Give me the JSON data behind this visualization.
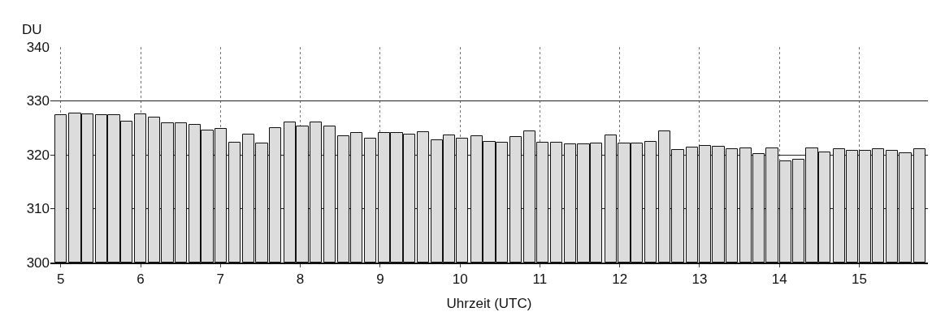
{
  "chart_data": {
    "type": "bar",
    "xlabel": "Uhrzeit (UTC)",
    "ylabel": "DU",
    "x": [
      5.0,
      5.18,
      5.34,
      5.51,
      5.67,
      5.83,
      6.0,
      6.17,
      6.34,
      6.51,
      6.68,
      6.84,
      7.01,
      7.18,
      7.35,
      7.52,
      7.69,
      7.87,
      8.03,
      8.2,
      8.37,
      8.54,
      8.71,
      8.88,
      9.05,
      9.21,
      9.37,
      9.54,
      9.71,
      9.87,
      10.03,
      10.21,
      10.37,
      10.53,
      10.7,
      10.87,
      11.04,
      11.21,
      11.38,
      11.55,
      11.71,
      11.89,
      12.06,
      12.22,
      12.39,
      12.56,
      12.73,
      12.91,
      13.07,
      13.24,
      13.41,
      13.58,
      13.74,
      13.91,
      14.08,
      14.24,
      14.41,
      14.57,
      14.75,
      14.91,
      15.08,
      15.24,
      15.41,
      15.58,
      15.76
    ],
    "values": [
      327.3,
      327.6,
      327.5,
      327.3,
      327.3,
      326.2,
      327.5,
      326.9,
      325.9,
      325.9,
      325.5,
      324.5,
      324.8,
      322.3,
      323.7,
      322.1,
      324.9,
      326.0,
      325.2,
      326.0,
      325.2,
      323.4,
      324.1,
      323.0,
      324.0,
      324.1,
      323.8,
      324.2,
      322.7,
      323.6,
      323.0,
      323.4,
      322.4,
      322.2,
      323.3,
      324.4,
      322.2,
      322.2,
      322.0,
      322.0,
      322.1,
      323.6,
      322.1,
      322.1,
      322.4,
      324.3,
      320.9,
      321.4,
      321.6,
      321.5,
      321.0,
      321.2,
      320.2,
      321.2,
      318.8,
      319.1,
      321.2,
      320.5,
      321.0,
      320.7,
      320.7,
      321.0,
      320.7,
      320.3,
      321.0
    ],
    "color": "#dcdcdc",
    "xlim": [
      4.87,
      15.86
    ],
    "xticks": [
      5,
      6,
      7,
      8,
      9,
      10,
      11,
      12,
      13,
      14,
      15
    ],
    "ylim": [
      300,
      340
    ],
    "yticks": [
      300,
      310,
      320,
      330,
      340
    ],
    "grid": true
  }
}
